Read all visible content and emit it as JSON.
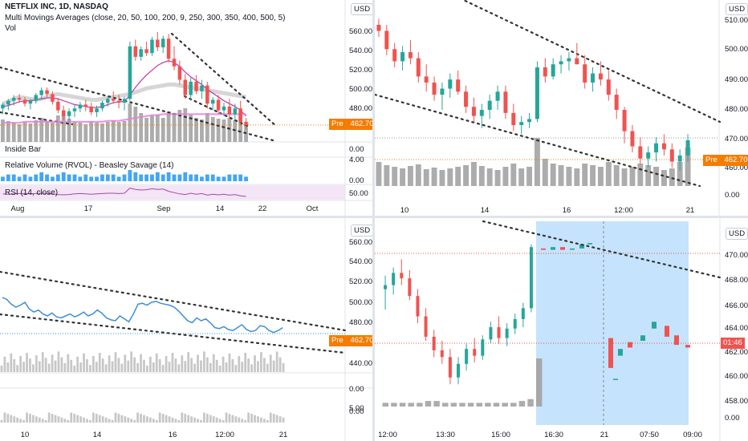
{
  "colors": {
    "up": "#26a69a",
    "down": "#ef5350",
    "volume": "#9e9e9e",
    "ma": "#c040b0",
    "trend": "#333333",
    "rvol": "#2196f3",
    "rsi": "#a04ca8",
    "rsi_band": "#f3e5f5",
    "selection": "#bbdefb",
    "line_series": "#3d8fd6",
    "price_tag": "#f57c00"
  },
  "top_left": {
    "title": "NETFLIX INC, 1D, NASDAQ",
    "indicator": "Multi Movings Averages (close, 20, 50, 100, 200, 9, 250, 300, 350, 400, 500, 5)",
    "vol_label": "Vol",
    "inside_bar_label": "Inside Bar",
    "rvol_label": "Relative Volume (RVOL) - Beasley Savage (14)",
    "rsi_label": "RSI (14, close)",
    "currency": "USD",
    "price_tag": {
      "prefix": "Pre",
      "value": "462.70"
    },
    "y_ticks": [
      "560.00",
      "540.00",
      "520.00",
      "500.00",
      "480.00"
    ],
    "inside_bar_ticks": [
      "0.00"
    ],
    "rvol_ticks": [
      "4.00",
      "0.00"
    ],
    "rsi_ticks": [
      "50.00"
    ],
    "x_ticks": [
      "Aug",
      "17",
      "Sep",
      "14",
      "22",
      "Oct"
    ]
  },
  "top_right": {
    "currency": "USD",
    "price_tag": {
      "prefix": "Pre",
      "value": "462.70"
    },
    "y_ticks": [
      "510.00",
      "500.00",
      "490.00",
      "480.00",
      "470.00",
      "460.00",
      "0.00"
    ],
    "x_ticks": [
      "10",
      "14",
      "16",
      "12:00",
      "21"
    ]
  },
  "bottom_left": {
    "currency": "USD",
    "price_tag": {
      "prefix": "Pre",
      "value": "462.70"
    },
    "y_ticks": [
      "560.00",
      "540.00",
      "520.00",
      "500.00",
      "480.00",
      "440.00",
      "0.00",
      "0.00",
      "5.00"
    ],
    "x_ticks": [
      "10",
      "14",
      "16",
      "12:00",
      "21"
    ]
  },
  "bottom_right": {
    "currency": "USD",
    "price_tag": {
      "value": "01:46"
    },
    "y_ticks": [
      "470.00",
      "468.00",
      "466.00",
      "464.00",
      "462.00",
      "460.00",
      "458.00",
      "0.00"
    ],
    "x_ticks": [
      "12:00",
      "13:30",
      "15:00",
      "16:30",
      "21",
      "07:50",
      "09:00"
    ]
  },
  "chart_data": [
    {
      "type": "candlestick",
      "title": "NETFLIX INC, 1D, NASDAQ",
      "timeframe": "1D",
      "ylim": [
        455,
        570
      ],
      "x_ticks": [
        "Aug",
        "17",
        "Sep",
        "14",
        "22",
        "Oct"
      ],
      "ohlc": [
        [
          480,
          486,
          474,
          484
        ],
        [
          484,
          490,
          478,
          488
        ],
        [
          488,
          494,
          483,
          491
        ],
        [
          491,
          495,
          486,
          489
        ],
        [
          489,
          492,
          482,
          485
        ],
        [
          485,
          490,
          479,
          488
        ],
        [
          488,
          496,
          485,
          494
        ],
        [
          494,
          502,
          490,
          499
        ],
        [
          499,
          502,
          492,
          495
        ],
        [
          495,
          498,
          484,
          487
        ],
        [
          487,
          491,
          475,
          478
        ],
        [
          478,
          483,
          468,
          472
        ],
        [
          472,
          480,
          466,
          477
        ],
        [
          477,
          484,
          471,
          480
        ],
        [
          480,
          487,
          476,
          484
        ],
        [
          484,
          489,
          477,
          482
        ],
        [
          482,
          486,
          473,
          476
        ],
        [
          476,
          483,
          471,
          480
        ],
        [
          480,
          488,
          477,
          486
        ],
        [
          486,
          493,
          482,
          490
        ],
        [
          490,
          498,
          485,
          488
        ],
        [
          488,
          494,
          480,
          486
        ],
        [
          486,
          492,
          478,
          490
        ],
        [
          490,
          550,
          488,
          545
        ],
        [
          545,
          552,
          530,
          534
        ],
        [
          534,
          545,
          530,
          542
        ],
        [
          542,
          550,
          535,
          538
        ],
        [
          538,
          555,
          535,
          552
        ],
        [
          552,
          560,
          540,
          544
        ],
        [
          544,
          556,
          538,
          553
        ],
        [
          553,
          558,
          528,
          532
        ],
        [
          532,
          545,
          520,
          524
        ],
        [
          524,
          530,
          505,
          510
        ],
        [
          510,
          516,
          490,
          494
        ],
        [
          494,
          512,
          488,
          508
        ],
        [
          508,
          515,
          495,
          498
        ],
        [
          498,
          510,
          490,
          504
        ],
        [
          504,
          508,
          480,
          485
        ],
        [
          485,
          492,
          478,
          489
        ],
        [
          489,
          494,
          474,
          478
        ],
        [
          478,
          486,
          472,
          482
        ],
        [
          482,
          490,
          470,
          474
        ],
        [
          474,
          485,
          468,
          480
        ],
        [
          480,
          488,
          462,
          466
        ],
        [
          466,
          470,
          458,
          462.7
        ]
      ],
      "volume": [
        28,
        26,
        24,
        22,
        25,
        23,
        27,
        30,
        26,
        24,
        33,
        35,
        29,
        25,
        24,
        22,
        26,
        24,
        23,
        25,
        27,
        25,
        26,
        48,
        44,
        36,
        30,
        33,
        34,
        30,
        38,
        36,
        40,
        42,
        34,
        30,
        28,
        36,
        31,
        29,
        28,
        30,
        27,
        33,
        22
      ],
      "ma": "Multi Movings Averages (close, 20, 50, 100, 200, 9, 250, 300, 350, 400, 500, 5)",
      "last": 462.7
    },
    {
      "type": "candlestick",
      "timeframe": "intraday",
      "ylim": [
        455,
        512
      ],
      "x_ticks": [
        "10",
        "14",
        "16",
        "12:00",
        "21"
      ],
      "ohlc": [
        [
          507,
          509,
          503,
          505
        ],
        [
          505,
          507,
          497,
          499
        ],
        [
          499,
          501,
          493,
          495
        ],
        [
          495,
          500,
          492,
          498
        ],
        [
          498,
          502,
          494,
          496
        ],
        [
          496,
          498,
          488,
          490
        ],
        [
          490,
          494,
          485,
          488
        ],
        [
          488,
          490,
          482,
          484
        ],
        [
          484,
          488,
          479,
          486
        ],
        [
          486,
          491,
          483,
          489
        ],
        [
          489,
          492,
          484,
          485
        ],
        [
          485,
          487,
          478,
          480
        ],
        [
          480,
          483,
          475,
          477
        ],
        [
          477,
          481,
          473,
          479
        ],
        [
          479,
          484,
          476,
          482
        ],
        [
          482,
          487,
          479,
          485
        ],
        [
          485,
          487,
          476,
          478
        ],
        [
          478,
          481,
          472,
          474
        ],
        [
          474,
          477,
          471,
          475
        ],
        [
          475,
          478,
          473,
          476
        ],
        [
          476,
          495,
          475,
          493
        ],
        [
          493,
          496,
          488,
          490
        ],
        [
          490,
          496,
          489,
          494
        ],
        [
          494,
          497,
          491,
          495
        ],
        [
          495,
          498,
          492,
          496
        ],
        [
          496,
          501,
          494,
          494
        ],
        [
          494,
          497,
          486,
          488
        ],
        [
          488,
          493,
          485,
          491
        ],
        [
          491,
          495,
          487,
          489
        ],
        [
          489,
          492,
          482,
          484
        ],
        [
          484,
          486,
          476,
          479
        ],
        [
          479,
          480,
          468,
          472
        ],
        [
          472,
          474,
          465,
          467
        ],
        [
          467,
          470,
          461,
          463
        ],
        [
          463,
          467,
          460,
          465
        ],
        [
          465,
          470,
          462,
          468
        ],
        [
          468,
          471,
          464,
          466
        ],
        [
          466,
          468,
          460,
          462
        ],
        [
          462,
          466,
          459,
          464
        ],
        [
          464,
          471,
          462,
          469
        ]
      ],
      "volume": [
        30,
        26,
        24,
        22,
        25,
        27,
        21,
        23,
        20,
        22,
        24,
        26,
        30,
        25,
        22,
        20,
        24,
        28,
        22,
        24,
        60,
        34,
        28,
        26,
        24,
        22,
        28,
        26,
        24,
        30,
        26,
        22,
        24,
        28,
        26,
        24,
        20,
        22,
        30,
        48
      ],
      "last": 462.7
    },
    {
      "type": "line",
      "ylim": [
        430,
        570
      ],
      "x_ticks": [
        "10",
        "14",
        "16",
        "12:00",
        "21"
      ],
      "values": [
        505,
        503,
        498,
        495,
        497,
        500,
        493,
        490,
        492,
        488,
        486,
        489,
        485,
        484,
        486,
        488,
        485,
        487,
        490,
        486,
        488,
        492,
        489,
        484,
        482,
        481,
        486,
        483,
        480,
        488,
        498,
        499,
        497,
        500,
        501,
        499,
        498,
        497,
        495,
        491,
        486,
        481,
        479,
        484,
        481,
        483,
        479,
        474,
        473,
        475,
        472,
        471,
        474,
        477,
        472,
        470,
        471,
        476,
        475,
        471,
        469,
        471,
        474
      ],
      "last": 462.7
    },
    {
      "type": "candlestick",
      "timeframe": "intraday",
      "ylim": [
        457,
        472
      ],
      "x_ticks": [
        "12:00",
        "13:30",
        "15:00",
        "16:30",
        "21",
        "07:50",
        "09:00"
      ],
      "ohlc": [
        [
          467.0,
          468.0,
          465.5,
          467.3
        ],
        [
          467.3,
          468.6,
          466.6,
          468.2
        ],
        [
          468.2,
          469.2,
          467.3,
          467.8
        ],
        [
          467.8,
          468.4,
          466.2,
          466.5
        ],
        [
          466.5,
          467.0,
          464.5,
          465.0
        ],
        [
          465.0,
          465.6,
          463.2,
          463.5
        ],
        [
          463.5,
          464.0,
          462.0,
          462.5
        ],
        [
          462.5,
          463.2,
          461.5,
          462.0
        ],
        [
          462.0,
          462.6,
          460.0,
          460.5
        ],
        [
          460.5,
          462.0,
          460.0,
          461.5
        ],
        [
          461.5,
          463.0,
          461.0,
          462.6
        ],
        [
          462.6,
          463.4,
          461.6,
          462.1
        ],
        [
          462.1,
          463.6,
          461.8,
          463.3
        ],
        [
          463.3,
          464.6,
          463.0,
          464.2
        ],
        [
          464.2,
          465.0,
          463.0,
          463.4
        ],
        [
          463.4,
          464.5,
          462.8,
          464.1
        ],
        [
          464.1,
          465.2,
          463.7,
          464.8
        ],
        [
          464.8,
          466.0,
          464.2,
          465.6
        ],
        [
          465.6,
          470.3,
          465.3,
          470.1
        ]
      ],
      "volume": [
        2,
        2,
        2,
        2,
        2,
        3,
        3,
        2,
        2,
        2,
        2,
        2,
        2,
        2,
        2,
        2,
        3,
        4,
        26
      ],
      "extended_hours_dashes": [
        [
          470.0,
          469.9
        ],
        [
          469.9,
          470.1
        ],
        [
          470.1,
          469.9
        ],
        [
          469.9,
          470.0
        ],
        [
          470.0,
          470.3
        ],
        [
          470.3,
          470.4
        ],
        [
          463.4,
          461.2
        ],
        [
          460.4,
          460.4
        ],
        [
          462.1,
          462.6
        ],
        [
          463.1,
          462.7
        ],
        [
          463.2,
          463.6
        ],
        [
          464.1,
          464.6
        ],
        [
          464.3,
          463.5
        ],
        [
          463.6,
          462.9
        ],
        [
          462.9,
          462.7
        ]
      ],
      "last_time_label": "01:46"
    }
  ]
}
